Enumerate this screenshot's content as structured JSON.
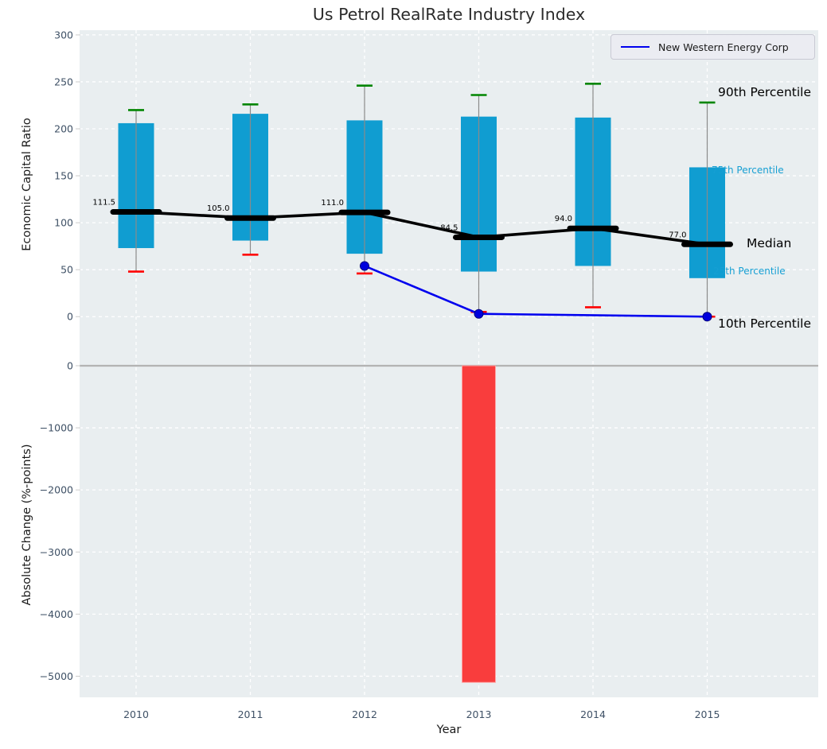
{
  "title": "Us Petrol RealRate Industry Index",
  "legend": {
    "label": "New Western Energy Corp"
  },
  "annotations": {
    "p90": "90th Percentile",
    "p75": "75th Percentile",
    "median": "Median",
    "p25": "25th Percentile",
    "p10": "10th Percentile"
  },
  "colors": {
    "panel_bg": "#e9eef0",
    "grid": "#ffffff",
    "box_fill": "#109dd1",
    "whisker": "#8a8a8a",
    "cap_high": "#008500",
    "cap_low": "#ff0000",
    "median": "#000000",
    "company_line": "#0000ee",
    "company_marker": "#0000dd",
    "company_marker_edge": "#000080",
    "bar_negative": "#f93d3d",
    "bar_negative_edge": "#ffa3a3",
    "zero_line": "#b3b3b3",
    "tick_label": "#3f5166",
    "tick_mark": "#cccccc",
    "annotation_small": "#169fd3"
  },
  "chart_data": [
    {
      "type": "boxplot",
      "panel": "top",
      "title": "Us Petrol RealRate Industry Index",
      "xlabel": "",
      "ylabel": "Economic Capital Ratio",
      "categories": [
        2010,
        2011,
        2012,
        2013,
        2014,
        2015
      ],
      "yticks": [
        0,
        50,
        100,
        150,
        200,
        250,
        300
      ],
      "ylim": [
        -23.5,
        305
      ],
      "grid": true,
      "legend_position": "upper right",
      "series": [
        {
          "name": "90th Percentile",
          "values": [
            220,
            226,
            246,
            236,
            248,
            228
          ]
        },
        {
          "name": "75th Percentile",
          "values": [
            206,
            216,
            209,
            213,
            212,
            159
          ]
        },
        {
          "name": "Median",
          "values": [
            111.5,
            105.0,
            111.0,
            84.5,
            94.0,
            77.0
          ]
        },
        {
          "name": "25th Percentile",
          "values": [
            73,
            81,
            67,
            48,
            54,
            41
          ]
        },
        {
          "name": "10th Percentile",
          "values": [
            48,
            66,
            46,
            5,
            10,
            0
          ]
        }
      ],
      "median_labels": [
        "111.5",
        "105.0",
        "111.0",
        "84.5",
        "94.0",
        "77.0"
      ],
      "overlay_line": {
        "name": "New Western Energy Corp",
        "x": [
          2012,
          2013,
          2015
        ],
        "values": [
          54,
          3,
          0
        ]
      }
    },
    {
      "type": "bar",
      "panel": "bottom",
      "title": "",
      "xlabel": "Year",
      "ylabel": "Absolute Change (%-points)",
      "categories": [
        2010,
        2011,
        2012,
        2013,
        2014,
        2015
      ],
      "values": [
        null,
        null,
        null,
        -5100,
        null,
        null
      ],
      "yticks": [
        0,
        -1000,
        -2000,
        -3000,
        -4000,
        -5000
      ],
      "ylim": [
        -5340,
        435
      ],
      "grid": true
    }
  ]
}
